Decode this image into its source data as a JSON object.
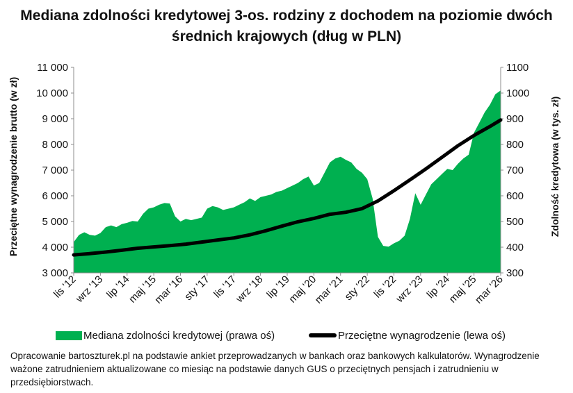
{
  "chart_data": {
    "type": "area+line",
    "title": "Mediana zdolności kredytowej 3-os. rodziny z dochodem na poziomie dwóch średnich krajowych (dług w PLN)",
    "title_lines": [
      "Mediana zdolności kredytowej 3-os. rodziny z dochodem na poziomie dwóch",
      "średnich krajowych (dług w PLN)"
    ],
    "ylabel_left": "Przeciętne wynagrodzenie brutto (w zł)",
    "ylabel_right": "Zdolność kredytowa (w tys. zł)",
    "ylim_left": [
      3000,
      11000
    ],
    "ylim_right": [
      300,
      1100
    ],
    "yticks_left": [
      "3 000",
      "4 000",
      "5 000",
      "6 000",
      "7 000",
      "8 000",
      "9 000",
      "10 000",
      "11 000"
    ],
    "yticks_right": [
      "300",
      "400",
      "500",
      "600",
      "700",
      "800",
      "900",
      "1000",
      "1100"
    ],
    "x_start": "2012-11",
    "x_end": "2026-03",
    "xticks": [
      "lis '12",
      "wrz '13",
      "lip '14",
      "maj '15",
      "mar '16",
      "sty '17",
      "lis '17",
      "wrz '18",
      "lip '19",
      "maj '20",
      "mar '21",
      "sty '22",
      "lis '22",
      "wrz '23",
      "lip '24",
      "maj '25",
      "mar '26"
    ],
    "grid": false,
    "legend_position": "bottom",
    "colors": {
      "area": "#00b050",
      "line": "#000000"
    },
    "series": [
      {
        "name": "Mediana zdolności kredytowej (prawa oś)",
        "type": "area",
        "axis": "right",
        "points": [
          [
            "2012-11",
            420
          ],
          [
            "2013-01",
            448
          ],
          [
            "2013-03",
            458
          ],
          [
            "2013-05",
            448
          ],
          [
            "2013-07",
            445
          ],
          [
            "2013-09",
            455
          ],
          [
            "2013-11",
            478
          ],
          [
            "2014-01",
            485
          ],
          [
            "2014-03",
            478
          ],
          [
            "2014-05",
            490
          ],
          [
            "2014-07",
            495
          ],
          [
            "2014-09",
            502
          ],
          [
            "2014-11",
            500
          ],
          [
            "2015-01",
            530
          ],
          [
            "2015-03",
            550
          ],
          [
            "2015-05",
            555
          ],
          [
            "2015-07",
            565
          ],
          [
            "2015-09",
            572
          ],
          [
            "2015-11",
            570
          ],
          [
            "2016-01",
            520
          ],
          [
            "2016-03",
            500
          ],
          [
            "2016-05",
            510
          ],
          [
            "2016-07",
            505
          ],
          [
            "2016-09",
            510
          ],
          [
            "2016-11",
            515
          ],
          [
            "2017-01",
            550
          ],
          [
            "2017-03",
            560
          ],
          [
            "2017-05",
            555
          ],
          [
            "2017-07",
            545
          ],
          [
            "2017-09",
            550
          ],
          [
            "2017-11",
            555
          ],
          [
            "2018-01",
            565
          ],
          [
            "2018-03",
            575
          ],
          [
            "2018-05",
            590
          ],
          [
            "2018-07",
            580
          ],
          [
            "2018-09",
            595
          ],
          [
            "2018-11",
            600
          ],
          [
            "2019-01",
            605
          ],
          [
            "2019-03",
            615
          ],
          [
            "2019-05",
            620
          ],
          [
            "2019-07",
            630
          ],
          [
            "2019-09",
            640
          ],
          [
            "2019-11",
            650
          ],
          [
            "2020-01",
            665
          ],
          [
            "2020-03",
            675
          ],
          [
            "2020-05",
            640
          ],
          [
            "2020-07",
            650
          ],
          [
            "2020-09",
            690
          ],
          [
            "2020-11",
            730
          ],
          [
            "2021-01",
            745
          ],
          [
            "2021-03",
            752
          ],
          [
            "2021-05",
            740
          ],
          [
            "2021-07",
            730
          ],
          [
            "2021-09",
            705
          ],
          [
            "2021-11",
            690
          ],
          [
            "2022-01",
            665
          ],
          [
            "2022-03",
            590
          ],
          [
            "2022-05",
            440
          ],
          [
            "2022-07",
            405
          ],
          [
            "2022-09",
            402
          ],
          [
            "2022-11",
            415
          ],
          [
            "2023-01",
            425
          ],
          [
            "2023-03",
            445
          ],
          [
            "2023-05",
            510
          ],
          [
            "2023-07",
            610
          ],
          [
            "2023-09",
            565
          ],
          [
            "2023-11",
            605
          ],
          [
            "2024-01",
            645
          ],
          [
            "2024-03",
            665
          ],
          [
            "2024-05",
            685
          ],
          [
            "2024-07",
            705
          ],
          [
            "2024-09",
            700
          ],
          [
            "2024-11",
            725
          ],
          [
            "2025-01",
            745
          ],
          [
            "2025-03",
            760
          ],
          [
            "2025-05",
            845
          ],
          [
            "2025-07",
            885
          ],
          [
            "2025-09",
            925
          ],
          [
            "2025-11",
            955
          ],
          [
            "2026-01",
            995
          ],
          [
            "2026-03",
            1010
          ]
        ]
      },
      {
        "name": "Przeciętne wynagrodzenie (lewa oś)",
        "type": "line",
        "axis": "left",
        "points": [
          [
            "2012-11",
            3700
          ],
          [
            "2013-05",
            3750
          ],
          [
            "2013-11",
            3810
          ],
          [
            "2014-05",
            3880
          ],
          [
            "2014-11",
            3960
          ],
          [
            "2015-05",
            4010
          ],
          [
            "2015-11",
            4060
          ],
          [
            "2016-05",
            4120
          ],
          [
            "2016-11",
            4200
          ],
          [
            "2017-05",
            4280
          ],
          [
            "2017-11",
            4360
          ],
          [
            "2018-05",
            4480
          ],
          [
            "2018-11",
            4640
          ],
          [
            "2019-05",
            4820
          ],
          [
            "2019-11",
            4990
          ],
          [
            "2020-05",
            5120
          ],
          [
            "2020-11",
            5280
          ],
          [
            "2021-05",
            5360
          ],
          [
            "2021-11",
            5500
          ],
          [
            "2022-05",
            5800
          ],
          [
            "2022-11",
            6200
          ],
          [
            "2023-05",
            6620
          ],
          [
            "2023-11",
            7050
          ],
          [
            "2024-05",
            7500
          ],
          [
            "2024-11",
            7950
          ],
          [
            "2025-05",
            8350
          ],
          [
            "2025-11",
            8700
          ],
          [
            "2026-03",
            8950
          ]
        ]
      }
    ]
  },
  "legend": {
    "area_label": "Mediana zdolności kredytowej (prawa oś)",
    "line_label": "Przeciętne wynagrodzenie (lewa oś)"
  },
  "footnote": "Opracowanie bartoszturek.pl na podstawie ankiet przeprowadzanych w bankach oraz bankowych kalkulatorów. Wynagrodzenie ważone zatrudnieniem aktualizowane co miesiąc na podstawie danych GUS o przeciętnych pensjach i zatrudnieniu w przedsiębiorstwach."
}
